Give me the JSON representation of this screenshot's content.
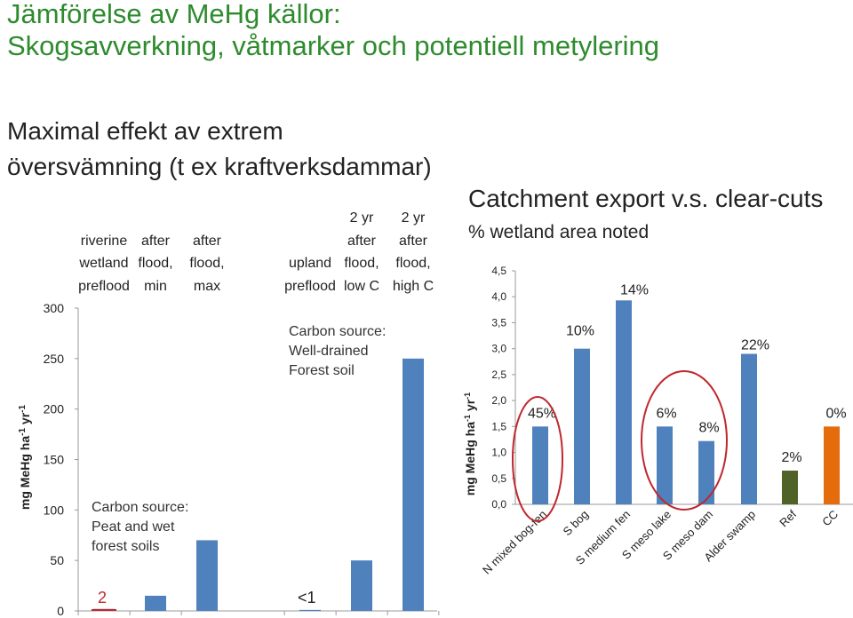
{
  "slide": {
    "title_line1": "Jämförelse av MeHg källor:",
    "title_line2": "Skogsavverkning, våtmarker och potentiell metylering",
    "subtitle_line1": "Maximal effekt av extrem",
    "subtitle_line2": "översvämning (t ex kraftverksdammar)",
    "note_left_1": "Carbon source:",
    "note_left_2": "Peat and wet",
    "note_left_3": "forest soils",
    "note_mid_1": "Carbon source:",
    "note_mid_2": "Well-drained",
    "note_mid_3": "Forest soil",
    "value_label_small_1": "2",
    "value_label_small_2": "<1",
    "colors": {
      "title": "#2e8b2e",
      "bar": "#4f81bd",
      "bar_ref": "#4f6228",
      "bar_cc": "#e46c0a",
      "circle": "#c0272d"
    }
  },
  "chart_data": [
    {
      "type": "bar",
      "title": "",
      "ylabel": "mg MeHg ha-1 yr-1",
      "ylim": [
        0,
        300
      ],
      "yticks": [
        "0",
        "50",
        "100",
        "150",
        "200",
        "250",
        "300"
      ],
      "categories": [
        {
          "line1": "riverine",
          "line2": "wetland",
          "line3": "preflood"
        },
        {
          "line1": "after",
          "line2": "flood,",
          "line3": "min"
        },
        {
          "line1": "after",
          "line2": "flood,",
          "line3": "max"
        },
        {
          "line1": "",
          "line2": "upland",
          "line3": "preflood"
        },
        {
          "line0": "2 yr",
          "line1": "after",
          "line2": "flood,",
          "line3": "low C"
        },
        {
          "line0": "2 yr",
          "line1": "after",
          "line2": "flood,",
          "line3": "high C"
        }
      ],
      "values": [
        2,
        15,
        70,
        1,
        50,
        250
      ],
      "grid": false
    },
    {
      "type": "bar",
      "title": "Catchment export v.s. clear-cuts",
      "subtitle": "% wetland area noted",
      "ylabel": "mg MeHg ha-1 yr-1",
      "ylim": [
        0,
        4.5
      ],
      "yticks": [
        "0,0",
        "0,5",
        "1,0",
        "1,5",
        "2,0",
        "2,5",
        "3,0",
        "3,5",
        "4,0",
        "4,5"
      ],
      "categories": [
        "N mixed bog-fen",
        "S bog",
        "S medium fen",
        "S meso lake",
        "S meso dam",
        "Alder swamp",
        "Ref",
        "CC"
      ],
      "values": [
        1.5,
        3.0,
        3.93,
        1.5,
        1.22,
        2.9,
        0.65,
        1.5
      ],
      "data_labels": [
        "45%",
        "10%",
        "14%",
        "6%",
        "8%",
        "22%",
        "2%",
        "0%"
      ],
      "grid": false
    }
  ]
}
